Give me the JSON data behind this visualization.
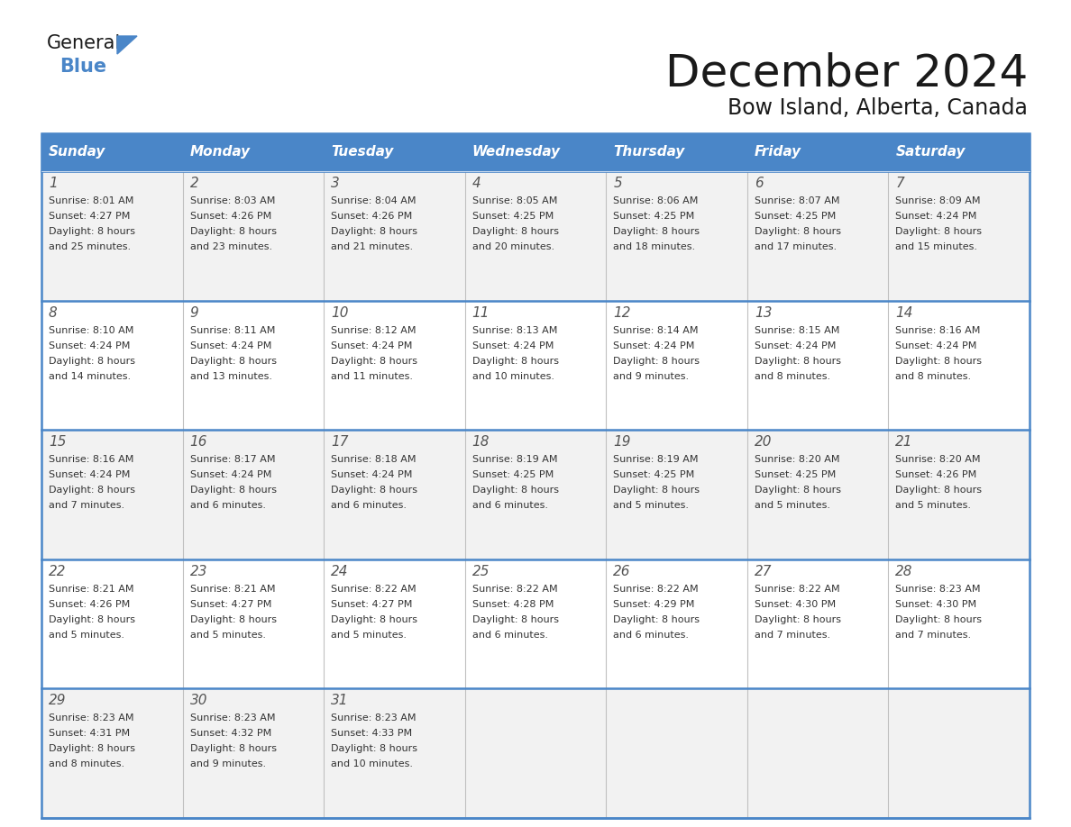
{
  "title": "December 2024",
  "subtitle": "Bow Island, Alberta, Canada",
  "days_of_week": [
    "Sunday",
    "Monday",
    "Tuesday",
    "Wednesday",
    "Thursday",
    "Friday",
    "Saturday"
  ],
  "header_bg": "#4a86c8",
  "header_text_color": "#ffffff",
  "row_bg_odd": "#f2f2f2",
  "row_bg_even": "#ffffff",
  "border_color": "#4a86c8",
  "text_color": "#333333",
  "day_number_color": "#555555",
  "calendar_data": [
    [
      {
        "day": "1",
        "sunrise": "8:01 AM",
        "sunset": "4:27 PM",
        "daylight_h": "8 hours",
        "daylight_m": "and 25 minutes."
      },
      {
        "day": "2",
        "sunrise": "8:03 AM",
        "sunset": "4:26 PM",
        "daylight_h": "8 hours",
        "daylight_m": "and 23 minutes."
      },
      {
        "day": "3",
        "sunrise": "8:04 AM",
        "sunset": "4:26 PM",
        "daylight_h": "8 hours",
        "daylight_m": "and 21 minutes."
      },
      {
        "day": "4",
        "sunrise": "8:05 AM",
        "sunset": "4:25 PM",
        "daylight_h": "8 hours",
        "daylight_m": "and 20 minutes."
      },
      {
        "day": "5",
        "sunrise": "8:06 AM",
        "sunset": "4:25 PM",
        "daylight_h": "8 hours",
        "daylight_m": "and 18 minutes."
      },
      {
        "day": "6",
        "sunrise": "8:07 AM",
        "sunset": "4:25 PM",
        "daylight_h": "8 hours",
        "daylight_m": "and 17 minutes."
      },
      {
        "day": "7",
        "sunrise": "8:09 AM",
        "sunset": "4:24 PM",
        "daylight_h": "8 hours",
        "daylight_m": "and 15 minutes."
      }
    ],
    [
      {
        "day": "8",
        "sunrise": "8:10 AM",
        "sunset": "4:24 PM",
        "daylight_h": "8 hours",
        "daylight_m": "and 14 minutes."
      },
      {
        "day": "9",
        "sunrise": "8:11 AM",
        "sunset": "4:24 PM",
        "daylight_h": "8 hours",
        "daylight_m": "and 13 minutes."
      },
      {
        "day": "10",
        "sunrise": "8:12 AM",
        "sunset": "4:24 PM",
        "daylight_h": "8 hours",
        "daylight_m": "and 11 minutes."
      },
      {
        "day": "11",
        "sunrise": "8:13 AM",
        "sunset": "4:24 PM",
        "daylight_h": "8 hours",
        "daylight_m": "and 10 minutes."
      },
      {
        "day": "12",
        "sunrise": "8:14 AM",
        "sunset": "4:24 PM",
        "daylight_h": "8 hours",
        "daylight_m": "and 9 minutes."
      },
      {
        "day": "13",
        "sunrise": "8:15 AM",
        "sunset": "4:24 PM",
        "daylight_h": "8 hours",
        "daylight_m": "and 8 minutes."
      },
      {
        "day": "14",
        "sunrise": "8:16 AM",
        "sunset": "4:24 PM",
        "daylight_h": "8 hours",
        "daylight_m": "and 8 minutes."
      }
    ],
    [
      {
        "day": "15",
        "sunrise": "8:16 AM",
        "sunset": "4:24 PM",
        "daylight_h": "8 hours",
        "daylight_m": "and 7 minutes."
      },
      {
        "day": "16",
        "sunrise": "8:17 AM",
        "sunset": "4:24 PM",
        "daylight_h": "8 hours",
        "daylight_m": "and 6 minutes."
      },
      {
        "day": "17",
        "sunrise": "8:18 AM",
        "sunset": "4:24 PM",
        "daylight_h": "8 hours",
        "daylight_m": "and 6 minutes."
      },
      {
        "day": "18",
        "sunrise": "8:19 AM",
        "sunset": "4:25 PM",
        "daylight_h": "8 hours",
        "daylight_m": "and 6 minutes."
      },
      {
        "day": "19",
        "sunrise": "8:19 AM",
        "sunset": "4:25 PM",
        "daylight_h": "8 hours",
        "daylight_m": "and 5 minutes."
      },
      {
        "day": "20",
        "sunrise": "8:20 AM",
        "sunset": "4:25 PM",
        "daylight_h": "8 hours",
        "daylight_m": "and 5 minutes."
      },
      {
        "day": "21",
        "sunrise": "8:20 AM",
        "sunset": "4:26 PM",
        "daylight_h": "8 hours",
        "daylight_m": "and 5 minutes."
      }
    ],
    [
      {
        "day": "22",
        "sunrise": "8:21 AM",
        "sunset": "4:26 PM",
        "daylight_h": "8 hours",
        "daylight_m": "and 5 minutes."
      },
      {
        "day": "23",
        "sunrise": "8:21 AM",
        "sunset": "4:27 PM",
        "daylight_h": "8 hours",
        "daylight_m": "and 5 minutes."
      },
      {
        "day": "24",
        "sunrise": "8:22 AM",
        "sunset": "4:27 PM",
        "daylight_h": "8 hours",
        "daylight_m": "and 5 minutes."
      },
      {
        "day": "25",
        "sunrise": "8:22 AM",
        "sunset": "4:28 PM",
        "daylight_h": "8 hours",
        "daylight_m": "and 6 minutes."
      },
      {
        "day": "26",
        "sunrise": "8:22 AM",
        "sunset": "4:29 PM",
        "daylight_h": "8 hours",
        "daylight_m": "and 6 minutes."
      },
      {
        "day": "27",
        "sunrise": "8:22 AM",
        "sunset": "4:30 PM",
        "daylight_h": "8 hours",
        "daylight_m": "and 7 minutes."
      },
      {
        "day": "28",
        "sunrise": "8:23 AM",
        "sunset": "4:30 PM",
        "daylight_h": "8 hours",
        "daylight_m": "and 7 minutes."
      }
    ],
    [
      {
        "day": "29",
        "sunrise": "8:23 AM",
        "sunset": "4:31 PM",
        "daylight_h": "8 hours",
        "daylight_m": "and 8 minutes."
      },
      {
        "day": "30",
        "sunrise": "8:23 AM",
        "sunset": "4:32 PM",
        "daylight_h": "8 hours",
        "daylight_m": "and 9 minutes."
      },
      {
        "day": "31",
        "sunrise": "8:23 AM",
        "sunset": "4:33 PM",
        "daylight_h": "8 hours",
        "daylight_m": "and 10 minutes."
      },
      null,
      null,
      null,
      null
    ]
  ],
  "logo_triangle_color": "#4a86c8",
  "logo_general_color": "#1a1a1a",
  "title_color": "#1a1a1a",
  "subtitle_color": "#1a1a1a"
}
